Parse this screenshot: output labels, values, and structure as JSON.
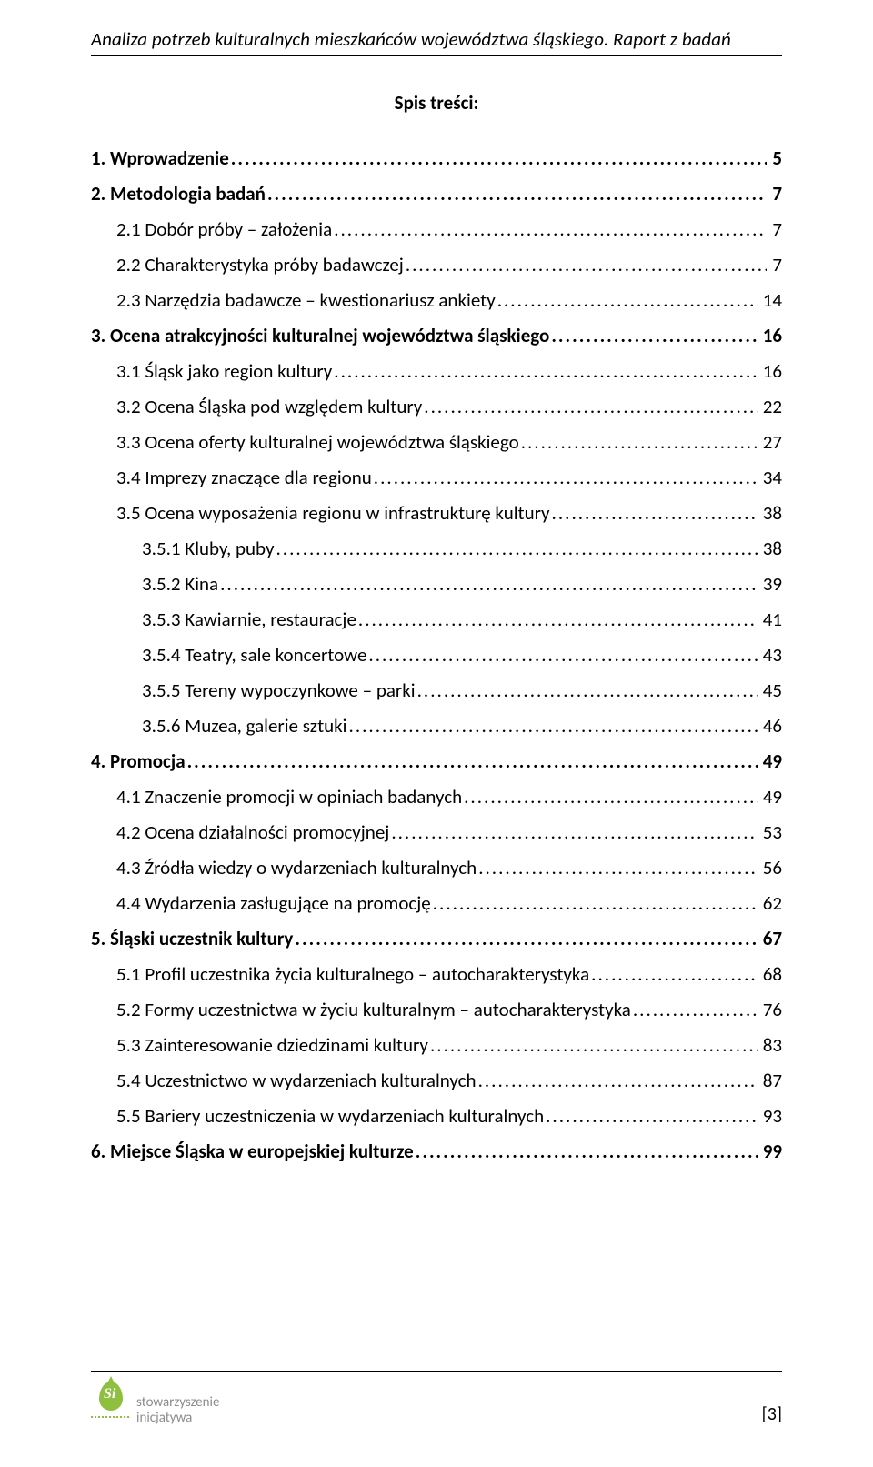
{
  "header": "Analiza potrzeb kulturalnych mieszkańców województwa śląskiego. Raport z badań",
  "tocTitle": "Spis treści:",
  "entries": [
    {
      "label": "1. Wprowadzenie",
      "page": "5",
      "level": 1,
      "bold": true
    },
    {
      "label": "2. Metodologia badań",
      "page": "7",
      "level": 1,
      "bold": true
    },
    {
      "label": "2.1 Dobór próby – założenia",
      "page": " 7",
      "level": 2,
      "bold": false
    },
    {
      "label": "2.2 Charakterystyka próby badawczej",
      "page": " 7",
      "level": 2,
      "bold": false
    },
    {
      "label": "2.3 Narzędzia badawcze – kwestionariusz ankiety",
      "page": " 14",
      "level": 2,
      "bold": false
    },
    {
      "label": "3. Ocena atrakcyjności kulturalnej województwa śląskiego",
      "page": "16",
      "level": 1,
      "bold": true
    },
    {
      "label": "3.1 Śląsk jako region kultury",
      "page": " 16",
      "level": 2,
      "bold": false
    },
    {
      "label": "3.2 Ocena Śląska pod względem kultury",
      "page": " 22",
      "level": 2,
      "bold": false
    },
    {
      "label": "3.3 Ocena oferty kulturalnej województwa śląskiego",
      "page": " 27",
      "level": 2,
      "bold": false
    },
    {
      "label": "3.4 Imprezy znaczące dla regionu",
      "page": " 34",
      "level": 2,
      "bold": false
    },
    {
      "label": "3.5 Ocena wyposażenia regionu w infrastrukturę kultury",
      "page": " 38",
      "level": 2,
      "bold": false
    },
    {
      "label": "3.5.1 Kluby, puby",
      "page": " 38",
      "level": 3,
      "bold": false
    },
    {
      "label": "3.5.2 Kina",
      "page": " 39",
      "level": 3,
      "bold": false
    },
    {
      "label": "3.5.3 Kawiarnie, restauracje",
      "page": " 41",
      "level": 3,
      "bold": false
    },
    {
      "label": "3.5.4 Teatry, sale koncertowe",
      "page": " 43",
      "level": 3,
      "bold": false
    },
    {
      "label": "3.5.5 Tereny wypoczynkowe – parki",
      "page": " 45",
      "level": 3,
      "bold": false
    },
    {
      "label": "3.5.6 Muzea, galerie sztuki",
      "page": " 46",
      "level": 3,
      "bold": false
    },
    {
      "label": "4. Promocja",
      "page": "49",
      "level": 1,
      "bold": true
    },
    {
      "label": "4.1 Znaczenie promocji w opiniach badanych",
      "page": " 49",
      "level": 2,
      "bold": false
    },
    {
      "label": "4.2 Ocena działalności promocyjnej",
      "page": " 53",
      "level": 2,
      "bold": false
    },
    {
      "label": "4.3 Źródła wiedzy o wydarzeniach kulturalnych",
      "page": " 56",
      "level": 2,
      "bold": false
    },
    {
      "label": "4.4 Wydarzenia zasługujące na promocję",
      "page": " 62",
      "level": 2,
      "bold": false
    },
    {
      "label": "5. Śląski uczestnik kultury",
      "page": "67",
      "level": 1,
      "bold": true
    },
    {
      "label": "5.1 Profil uczestnika życia kulturalnego – autocharakterystyka",
      "page": " 68",
      "level": 2,
      "bold": false
    },
    {
      "label": "5.2 Formy uczestnictwa w życiu kulturalnym – autocharakterystyka",
      "page": " 76",
      "level": 2,
      "bold": false
    },
    {
      "label": "5.3 Zainteresowanie dziedzinami kultury",
      "page": " 83",
      "level": 2,
      "bold": false
    },
    {
      "label": "5.4 Uczestnictwo w wydarzeniach kulturalnych",
      "page": " 87",
      "level": 2,
      "bold": false
    },
    {
      "label": "5.5 Bariery uczestniczenia w wydarzeniach kulturalnych",
      "page": " 93",
      "level": 2,
      "bold": false
    },
    {
      "label": "6. Miejsce Śląska w europejskiej kulturze",
      "page": "99",
      "level": 1,
      "bold": true
    }
  ],
  "logo": {
    "mark": "Si",
    "line1": "stowarzyszenie",
    "line2": "inicjatywa"
  },
  "pageNumber": "[3]"
}
